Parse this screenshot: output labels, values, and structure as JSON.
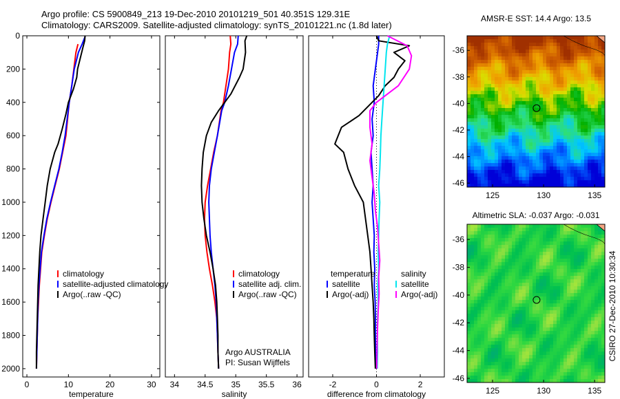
{
  "header": {
    "line1": "Argo profile: CS 5900849_213 19-Dec-2010 20101219_501 40.351S 129.31E",
    "line2": "Climatology: CARS2009. Satellite-adjusted climatology: synTS_20101221.nc (1.8d later)"
  },
  "side_label": "CSIRO 27-Dec-2010 10:30:34",
  "colors": {
    "red": "#ff0000",
    "blue": "#0000ff",
    "black": "#000000",
    "cyan": "#00e5ee",
    "magenta": "#ff00ff"
  },
  "chart_data": [
    {
      "type": "line",
      "xlabel": "temperature",
      "xlim": [
        -1,
        32
      ],
      "ylim": [
        2050,
        0
      ],
      "xticks": [
        0,
        10,
        20,
        30
      ],
      "yticks": [
        0,
        200,
        400,
        600,
        800,
        1000,
        1200,
        1400,
        1600,
        1800,
        2000
      ],
      "legend": [
        "climatology",
        "satellite-adjusted climatology",
        "Argo(..raw -QC)"
      ],
      "series": [
        {
          "name": "climatology",
          "color": "red",
          "points": [
            [
              12.3,
              50
            ],
            [
              11.8,
              100
            ],
            [
              11.3,
              200
            ],
            [
              10.8,
              300
            ],
            [
              10.2,
              400
            ],
            [
              9.8,
              500
            ],
            [
              9.4,
              600
            ],
            [
              8.6,
              700
            ],
            [
              7.8,
              800
            ],
            [
              6.8,
              900
            ],
            [
              5.8,
              1000
            ],
            [
              4.9,
              1100
            ],
            [
              4.2,
              1200
            ],
            [
              3.6,
              1300
            ],
            [
              3.3,
              1400
            ],
            [
              3.0,
              1500
            ],
            [
              2.8,
              1600
            ],
            [
              2.6,
              1700
            ],
            [
              2.5,
              1800
            ],
            [
              2.4,
              1900
            ],
            [
              2.3,
              2000
            ]
          ]
        },
        {
          "name": "satellite-adjusted climatology",
          "color": "blue",
          "points": [
            [
              14.0,
              5
            ],
            [
              13.3,
              50
            ],
            [
              12.4,
              100
            ],
            [
              11.4,
              200
            ],
            [
              10.8,
              300
            ],
            [
              10.2,
              400
            ],
            [
              9.7,
              500
            ],
            [
              9.2,
              600
            ],
            [
              8.5,
              700
            ],
            [
              7.7,
              800
            ],
            [
              6.7,
              900
            ],
            [
              5.7,
              1000
            ],
            [
              4.8,
              1100
            ],
            [
              4.1,
              1200
            ],
            [
              3.5,
              1300
            ],
            [
              3.2,
              1400
            ],
            [
              2.9,
              1500
            ],
            [
              2.7,
              1600
            ],
            [
              2.6,
              1700
            ],
            [
              2.5,
              1800
            ],
            [
              2.4,
              1900
            ],
            [
              2.3,
              2000
            ]
          ]
        },
        {
          "name": "Argo(..raw -QC)",
          "color": "black",
          "points": [
            [
              14.0,
              0
            ],
            [
              13.9,
              30
            ],
            [
              13.5,
              70
            ],
            [
              12.8,
              140
            ],
            [
              12.2,
              200
            ],
            [
              12.0,
              250
            ],
            [
              11.2,
              320
            ],
            [
              10.0,
              400
            ],
            [
              9.4,
              470
            ],
            [
              8.5,
              560
            ],
            [
              7.5,
              650
            ],
            [
              6.7,
              700
            ],
            [
              5.6,
              800
            ],
            [
              4.9,
              900
            ],
            [
              4.4,
              1000
            ],
            [
              3.9,
              1100
            ],
            [
              3.4,
              1200
            ],
            [
              3.1,
              1300
            ],
            [
              2.9,
              1400
            ],
            [
              2.7,
              1500
            ],
            [
              2.6,
              1600
            ],
            [
              2.5,
              1700
            ],
            [
              2.4,
              1800
            ],
            [
              2.3,
              1900
            ],
            [
              2.3,
              2000
            ]
          ]
        }
      ]
    },
    {
      "type": "line",
      "xlabel": "salinity",
      "xlim": [
        33.85,
        36.1
      ],
      "ylim": [
        2050,
        0
      ],
      "xticks": [
        34,
        34.5,
        35,
        35.5,
        36
      ],
      "yticks": [],
      "legend": [
        "climatology",
        "satellite adj. clim.",
        "Argo(..raw -QC)"
      ],
      "annotation": [
        "Argo AUSTRALIA",
        "PI: Susan Wijffels"
      ],
      "series": [
        {
          "name": "climatology",
          "color": "red",
          "points": [
            [
              34.91,
              0
            ],
            [
              34.92,
              50
            ],
            [
              34.9,
              100
            ],
            [
              34.88,
              200
            ],
            [
              34.84,
              300
            ],
            [
              34.8,
              400
            ],
            [
              34.76,
              450
            ],
            [
              34.7,
              600
            ],
            [
              34.64,
              700
            ],
            [
              34.59,
              800
            ],
            [
              34.54,
              900
            ],
            [
              34.5,
              1000
            ],
            [
              34.49,
              1100
            ],
            [
              34.5,
              1200
            ],
            [
              34.53,
              1300
            ],
            [
              34.57,
              1400
            ],
            [
              34.62,
              1500
            ],
            [
              34.66,
              1600
            ],
            [
              34.69,
              1700
            ],
            [
              34.7,
              1800
            ],
            [
              34.71,
              1900
            ],
            [
              34.72,
              2000
            ]
          ]
        },
        {
          "name": "satellite adj. clim.",
          "color": "blue",
          "points": [
            [
              35.04,
              0
            ],
            [
              35.03,
              50
            ],
            [
              34.98,
              100
            ],
            [
              34.93,
              200
            ],
            [
              34.88,
              300
            ],
            [
              34.82,
              400
            ],
            [
              34.77,
              450
            ],
            [
              34.7,
              600
            ],
            [
              34.65,
              700
            ],
            [
              34.6,
              800
            ],
            [
              34.57,
              900
            ],
            [
              34.56,
              1000
            ],
            [
              34.57,
              1100
            ],
            [
              34.58,
              1200
            ],
            [
              34.6,
              1300
            ],
            [
              34.63,
              1400
            ],
            [
              34.66,
              1500
            ],
            [
              34.68,
              1600
            ],
            [
              34.69,
              1700
            ],
            [
              34.7,
              1800
            ],
            [
              34.71,
              1900
            ],
            [
              34.72,
              2000
            ]
          ]
        },
        {
          "name": "Argo(..raw -QC)",
          "color": "black",
          "points": [
            [
              35.18,
              0
            ],
            [
              35.15,
              30
            ],
            [
              35.16,
              100
            ],
            [
              35.12,
              200
            ],
            [
              35.06,
              250
            ],
            [
              34.92,
              350
            ],
            [
              34.72,
              450
            ],
            [
              34.6,
              520
            ],
            [
              34.52,
              600
            ],
            [
              34.47,
              700
            ],
            [
              34.45,
              800
            ],
            [
              34.44,
              900
            ],
            [
              34.45,
              1000
            ],
            [
              34.48,
              1100
            ],
            [
              34.52,
              1200
            ],
            [
              34.58,
              1300
            ],
            [
              34.63,
              1400
            ],
            [
              34.67,
              1500
            ],
            [
              34.69,
              1600
            ],
            [
              34.7,
              1700
            ],
            [
              34.71,
              1800
            ],
            [
              34.71,
              1900
            ],
            [
              34.72,
              2000
            ]
          ]
        }
      ]
    },
    {
      "type": "line",
      "xlabel": "difference from climatology",
      "xlim": [
        -3.1,
        3.1
      ],
      "ylim": [
        2050,
        0
      ],
      "xticks": [
        -2,
        0,
        2
      ],
      "yticks": [],
      "legend_groups": [
        {
          "heading": "temperature",
          "items": [
            "satellite",
            "Argo(-adj)"
          ]
        },
        {
          "heading": "salinity",
          "items": [
            "satellite",
            "Argo(-adj)"
          ]
        }
      ],
      "series": [
        {
          "name": "temperature satellite",
          "color": "blue",
          "points": [
            [
              0.1,
              0
            ],
            [
              0.1,
              50
            ],
            [
              0.05,
              100
            ],
            [
              -0.05,
              200
            ],
            [
              -0.15,
              300
            ],
            [
              -0.1,
              400
            ],
            [
              -0.2,
              500
            ],
            [
              -0.15,
              600
            ],
            [
              -0.25,
              700
            ],
            [
              -0.2,
              800
            ],
            [
              -0.15,
              900
            ],
            [
              -0.2,
              1000
            ],
            [
              -0.15,
              1100
            ],
            [
              -0.1,
              1200
            ],
            [
              -0.12,
              1300
            ],
            [
              -0.08,
              1400
            ],
            [
              -0.1,
              1500
            ],
            [
              -0.06,
              1600
            ],
            [
              -0.05,
              1700
            ],
            [
              -0.05,
              1800
            ],
            [
              -0.04,
              1900
            ],
            [
              -0.03,
              2000
            ]
          ]
        },
        {
          "name": "temperature Argo(-adj)",
          "color": "black",
          "points": [
            [
              0.0,
              0
            ],
            [
              0.1,
              30
            ],
            [
              1.5,
              60
            ],
            [
              0.8,
              100
            ],
            [
              1.3,
              150
            ],
            [
              1.0,
              200
            ],
            [
              0.8,
              250
            ],
            [
              0.4,
              300
            ],
            [
              0.1,
              360
            ],
            [
              -0.2,
              400
            ],
            [
              -0.8,
              480
            ],
            [
              -1.6,
              550
            ],
            [
              -1.9,
              650
            ],
            [
              -1.5,
              700
            ],
            [
              -1.3,
              800
            ],
            [
              -1.0,
              900
            ],
            [
              -0.6,
              1000
            ],
            [
              -0.5,
              1100
            ],
            [
              -0.4,
              1200
            ],
            [
              -0.3,
              1300
            ],
            [
              -0.25,
              1400
            ],
            [
              -0.2,
              1500
            ],
            [
              -0.15,
              1600
            ],
            [
              -0.12,
              1700
            ],
            [
              -0.1,
              1800
            ],
            [
              -0.08,
              1900
            ],
            [
              -0.05,
              2000
            ]
          ]
        },
        {
          "name": "salinity satellite",
          "color": "cyan",
          "points": [
            [
              0.6,
              0
            ],
            [
              0.5,
              50
            ],
            [
              0.45,
              100
            ],
            [
              0.4,
              200
            ],
            [
              0.35,
              300
            ],
            [
              0.3,
              400
            ],
            [
              0.25,
              500
            ],
            [
              0.2,
              600
            ],
            [
              0.18,
              700
            ],
            [
              0.15,
              800
            ],
            [
              0.1,
              900
            ],
            [
              0.15,
              1000
            ],
            [
              0.12,
              1100
            ],
            [
              0.1,
              1200
            ],
            [
              0.08,
              1300
            ],
            [
              0.1,
              1400
            ],
            [
              0.06,
              1500
            ],
            [
              0.08,
              1600
            ],
            [
              0.05,
              1700
            ],
            [
              0.04,
              1800
            ],
            [
              0.05,
              1900
            ],
            [
              0.03,
              2000
            ]
          ]
        },
        {
          "name": "salinity Argo(-adj)",
          "color": "magenta",
          "points": [
            [
              0.5,
              0
            ],
            [
              1.4,
              60
            ],
            [
              1.6,
              120
            ],
            [
              1.5,
              200
            ],
            [
              1.0,
              300
            ],
            [
              0.5,
              350
            ],
            [
              0.0,
              400
            ],
            [
              -0.3,
              450
            ],
            [
              -0.3,
              550
            ],
            [
              -0.2,
              650
            ],
            [
              -0.3,
              750
            ],
            [
              -0.2,
              850
            ],
            [
              -0.1,
              950
            ],
            [
              -0.05,
              1050
            ],
            [
              0.05,
              1150
            ],
            [
              0.1,
              1250
            ],
            [
              0.15,
              1350
            ],
            [
              0.1,
              1450
            ],
            [
              0.12,
              1550
            ],
            [
              0.08,
              1650
            ],
            [
              0.05,
              1750
            ],
            [
              0.03,
              1850
            ],
            [
              0.01,
              2000
            ]
          ]
        }
      ]
    },
    {
      "type": "heatmap",
      "title": "AMSR-E SST: 14.4 Argo: 13.5",
      "xlim": [
        122.5,
        136
      ],
      "ylim": [
        -46.3,
        -34.9
      ],
      "xticks": [
        125,
        130,
        135
      ],
      "yticks": [
        -36,
        -38,
        -40,
        -42,
        -44,
        -46
      ],
      "marker": [
        129.31,
        -40.351
      ],
      "colormap": [
        "#0000d8",
        "#0060ff",
        "#00c8ff",
        "#30e070",
        "#00b000",
        "#d8e000",
        "#f0a000",
        "#d06000",
        "#a03000"
      ],
      "value_range": [
        11,
        19
      ]
    },
    {
      "type": "heatmap",
      "title": "Altimetric SLA: -0.037 Argo: -0.031",
      "xlim": [
        122.5,
        136
      ],
      "ylim": [
        -46.3,
        -34.9
      ],
      "xticks": [
        125,
        130,
        135
      ],
      "yticks": [
        -36,
        -38,
        -40,
        -42,
        -44,
        -46
      ],
      "marker": [
        129.31,
        -40.351
      ],
      "colormap": [
        "#00a878",
        "#00c050",
        "#30d840",
        "#90e040",
        "#d0f030"
      ],
      "value_range": [
        -0.2,
        0.2
      ]
    }
  ]
}
